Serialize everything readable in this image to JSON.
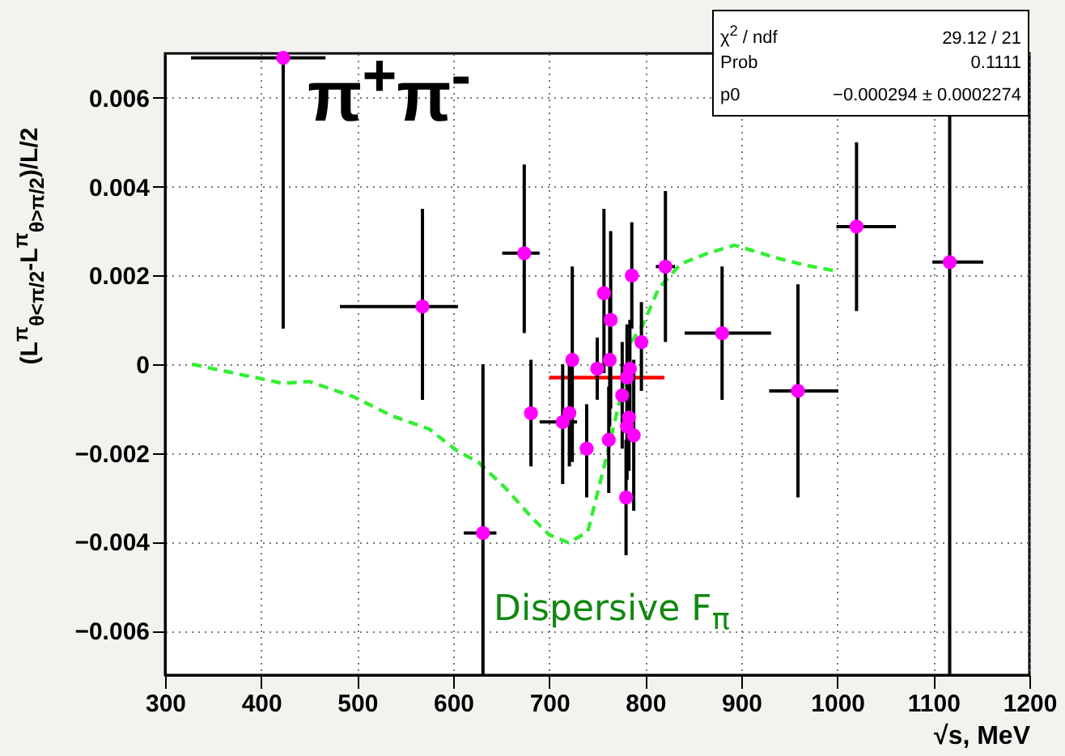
{
  "chart_data": {
    "type": "scatter",
    "title": "π$^{+}$π$^{-}$",
    "xlabel": "√s, MeV",
    "ylabel": "(L$^{π}$$_{θ<π/2}$-L$^{π}$$_{θ>π/2}$)/L/2",
    "xlim": [
      300,
      1200
    ],
    "xticks": [
      300,
      400,
      500,
      600,
      700,
      800,
      900,
      1000,
      1100,
      1200
    ],
    "ylim": [
      -0.007,
      0.007
    ],
    "yticks": [
      -0.006,
      -0.004,
      -0.002,
      0,
      0.002,
      0.004,
      0.006
    ],
    "grid": true,
    "annotations": [
      "χ$^{2}$ / ndf",
      "29.12 / 21",
      "Prob",
      "0.1111",
      "p0",
      "−0.000294 ± 0.0002274"
    ],
    "series": [
      {
        "type": "line",
        "name": "Dispersive F$_{π}$",
        "color": "#33ee33",
        "line_style": "dashed",
        "x": [
          328,
          394,
          422,
          450,
          496,
          536,
          575,
          604,
          626,
          655,
          683,
          700,
          720,
          740,
          757,
          769,
          777,
          783,
          797,
          814,
          837,
          865,
          893,
          939,
          967,
          998
        ],
        "values": [
          0,
          -0.0003,
          -0.00043,
          -0.00039,
          -0.00073,
          -0.00116,
          -0.00146,
          -0.00195,
          -0.0022,
          -0.0028,
          -0.00348,
          -0.00384,
          -0.00402,
          -0.00378,
          -0.00232,
          -0.00122,
          -0.00049,
          0.00043,
          0.00086,
          0.00171,
          0.00226,
          0.0025,
          0.00268,
          0.00238,
          0.00223,
          0.0021
        ]
      },
      {
        "type": "line",
        "color": "#ff0000",
        "line_style": "solid",
        "x": [
          700,
          820
        ],
        "values": [
          -0.0003,
          -0.0003
        ]
      },
      {
        "color": "#ff00ff",
        "marker": "circle",
        "x": [
          423,
          568,
          631,
          674,
          681,
          714,
          721,
          724,
          739,
          750,
          757,
          764,
          763,
          762,
          780,
          786,
          784,
          781,
          776,
          783,
          781,
          788,
          796,
          821,
          880,
          959,
          1020,
          1117
        ],
        "values": [
          0.0069,
          0.0013,
          -0.0038,
          0.0025,
          -0.0011,
          -0.0013,
          -0.0011,
          0.0001,
          -0.0019,
          -0.0001,
          0.0016,
          0.001,
          0.0001,
          -0.0017,
          -0.003,
          0.002,
          -0.0001,
          -0.0003,
          -0.0007,
          -0.0012,
          -0.0014,
          -0.0016,
          0.0005,
          0.0022,
          0.0007,
          -0.0006,
          0.0031,
          0.0023
        ],
        "errors": [
          [
            0.0008,
            0.007
          ],
          [
            -0.0008,
            0.0035
          ],
          [
            -0.007,
            0.0
          ],
          [
            0.0007,
            0.0045
          ],
          [
            -0.0023,
            0.0001
          ],
          [
            -0.0027,
            0.0
          ],
          [
            -0.0023,
            0.0001
          ],
          [
            -0.0022,
            0.0022
          ],
          [
            -0.003,
            -0.0009
          ],
          [
            -0.0008,
            0.0006
          ],
          [
            -0.0002,
            0.0035
          ],
          [
            -0.001,
            0.003
          ],
          [
            -0.0014,
            0.0016
          ],
          [
            -0.0029,
            -0.0005
          ],
          [
            -0.0043,
            -0.0017
          ],
          [
            0.0008,
            0.0032
          ],
          [
            -0.0012,
            0.001
          ],
          [
            -0.0015,
            0.0009
          ],
          [
            -0.0019,
            0.0005
          ],
          [
            -0.0024,
            0.0
          ],
          [
            -0.0026,
            -0.0002
          ],
          [
            -0.0033,
            0.0001
          ],
          [
            -0.0006,
            0.0014
          ],
          [
            0.0005,
            0.0039
          ],
          [
            -0.0008,
            0.0022
          ],
          [
            -0.003,
            0.0018
          ],
          [
            0.0012,
            0.005
          ],
          [
            -0.007,
            0.0056
          ]
        ],
        "xerrors": [
          [
            327,
            467
          ],
          [
            482,
            605
          ],
          [
            611,
            645
          ],
          [
            651,
            690
          ],
          null,
          [
            690,
            729
          ],
          null,
          null,
          null,
          null,
          null,
          null,
          null,
          null,
          null,
          null,
          null,
          null,
          null,
          null,
          null,
          null,
          null,
          [
            811,
            831
          ],
          [
            841,
            931
          ],
          [
            929,
            1001
          ],
          [
            999,
            1061
          ],
          [
            1099,
            1152
          ]
        ]
      }
    ]
  }
}
